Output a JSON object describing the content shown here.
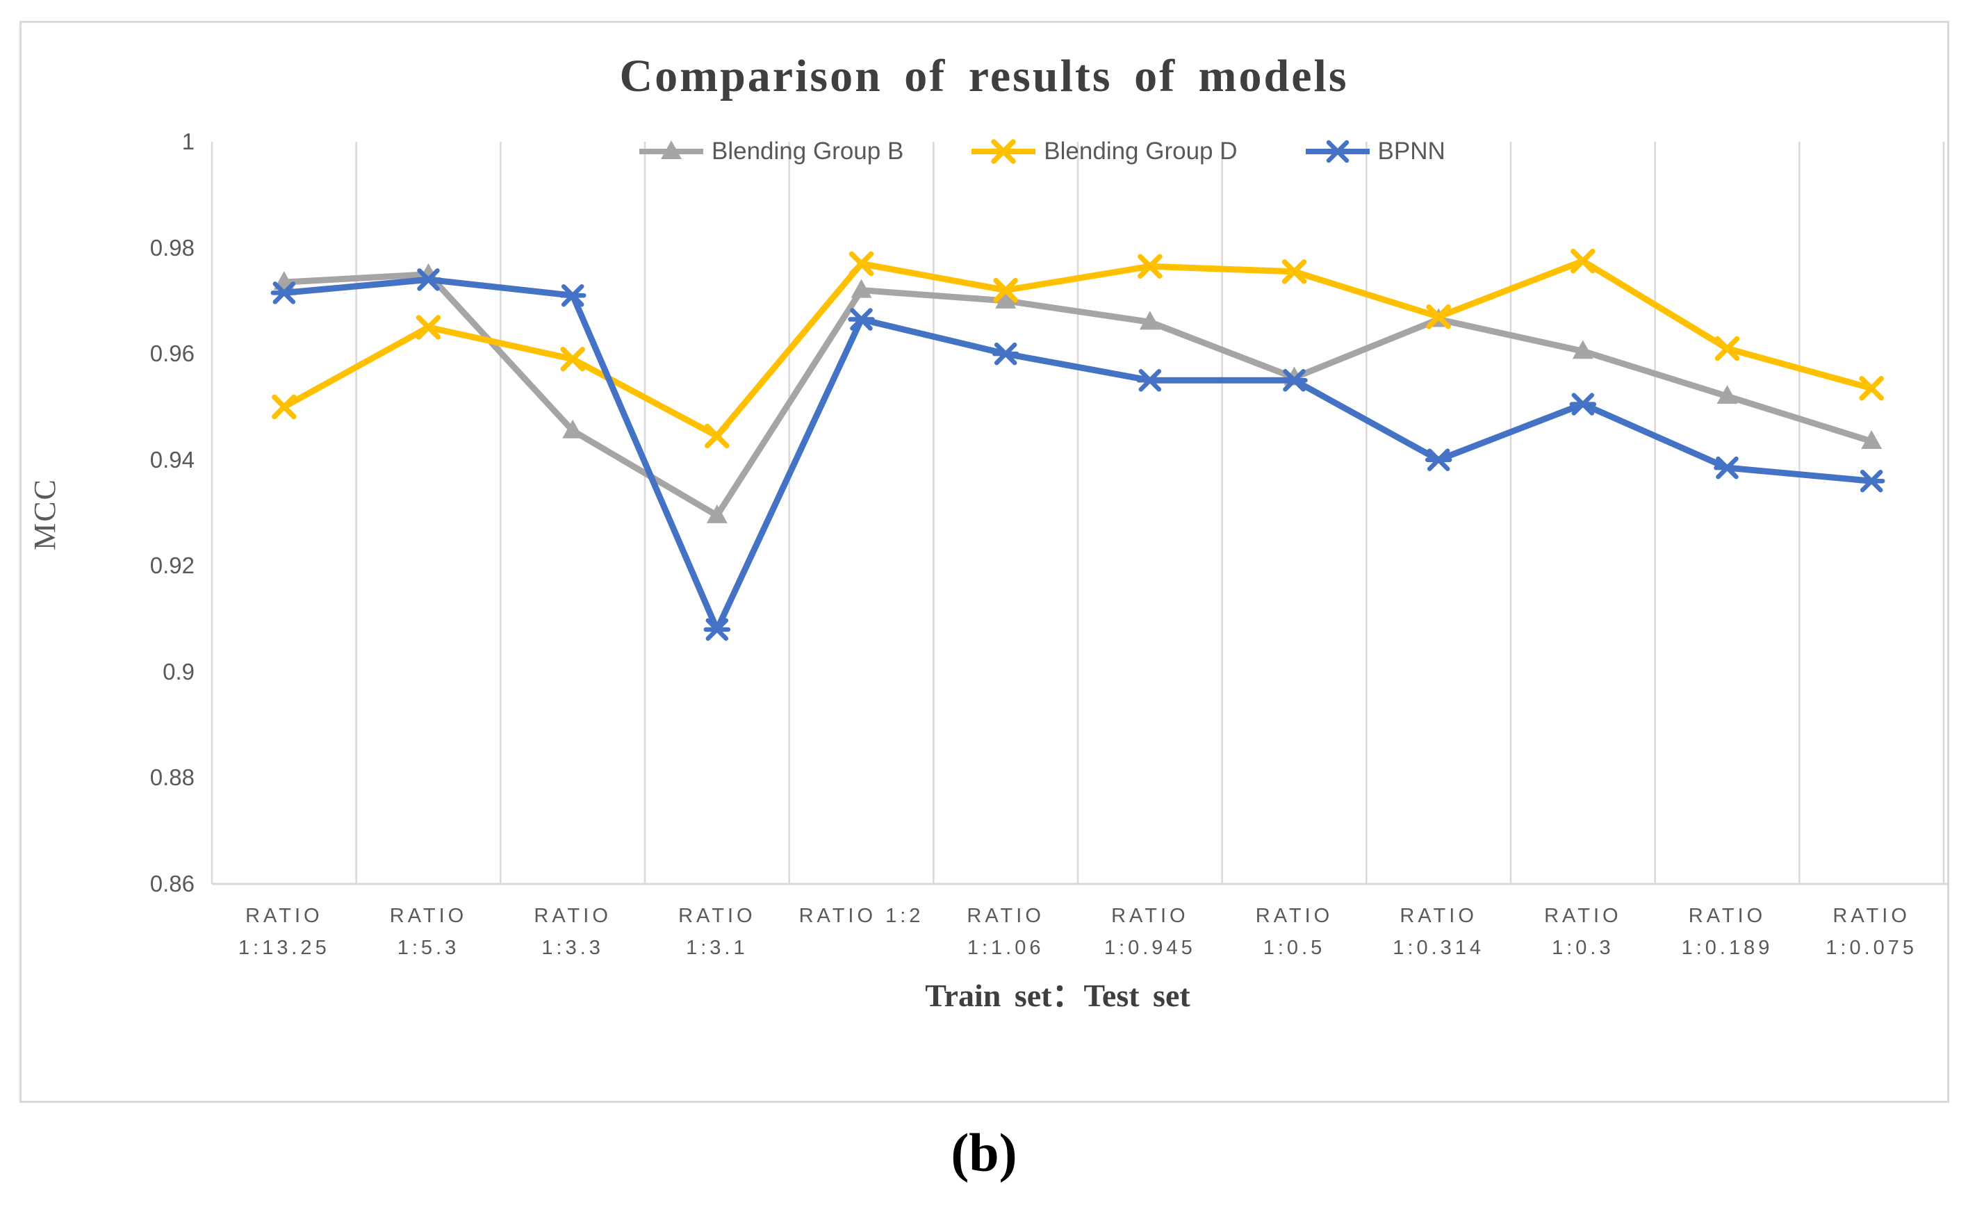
{
  "figure": {
    "caption": "(b)"
  },
  "colors": {
    "background": "#ffffff",
    "figure_border": "#d9d9d9",
    "grid": "#d9d9d9",
    "axis_line": "#d9d9d9",
    "axis_text": "#595959",
    "title_text": "#3f3f3f",
    "caption_text": "#000000",
    "series_blending_b": "#a5a5a5",
    "series_blending_d": "#ffc000",
    "series_bpnn": "#4472c4"
  },
  "chart_data": {
    "type": "line",
    "title": "Comparison of results of models",
    "xlabel": "Train set：Test set",
    "ylabel": "MCC",
    "ylim": [
      0.86,
      1
    ],
    "ytick_values": [
      1,
      0.98,
      0.96,
      0.94,
      0.92,
      0.9,
      0.88,
      0.86
    ],
    "ytick_labels": [
      "1",
      "0.98",
      "0.96",
      "0.94",
      "0.92",
      "0.9",
      "0.88",
      "0.86"
    ],
    "grid": "vertical-only",
    "legend_position": "top-center",
    "categories": [
      [
        "RATIO",
        "1:13.25"
      ],
      [
        "RATIO",
        "1:5.3"
      ],
      [
        "RATIO",
        "1:3.3"
      ],
      [
        "RATIO",
        "1:3.1"
      ],
      [
        "RATIO 1:2",
        ""
      ],
      [
        "RATIO",
        "1:1.06"
      ],
      [
        "RATIO",
        "1:0.945"
      ],
      [
        "RATIO",
        "1:0.5"
      ],
      [
        "RATIO",
        "1:0.314"
      ],
      [
        "RATIO",
        "1:0.3"
      ],
      [
        "RATIO",
        "1:0.189"
      ],
      [
        "RATIO",
        "1:0.075"
      ]
    ],
    "series": [
      {
        "name": "Blending Group B",
        "color": "#a5a5a5",
        "marker": "triangle",
        "values": [
          0.9735,
          0.975,
          0.9455,
          0.9295,
          0.972,
          0.97,
          0.966,
          0.9555,
          0.9665,
          0.9605,
          0.952,
          0.9435
        ]
      },
      {
        "name": "Blending Group D",
        "color": "#ffc000",
        "marker": "x",
        "values": [
          0.95,
          0.965,
          0.959,
          0.9445,
          0.977,
          0.972,
          0.9765,
          0.9755,
          0.967,
          0.9775,
          0.961,
          0.9535
        ]
      },
      {
        "name": "BPNN",
        "color": "#4472c4",
        "marker": "asterisk",
        "values": [
          0.9715,
          0.974,
          0.971,
          0.908,
          0.9665,
          0.96,
          0.955,
          0.955,
          0.94,
          0.9505,
          0.9385,
          0.936
        ]
      }
    ]
  }
}
